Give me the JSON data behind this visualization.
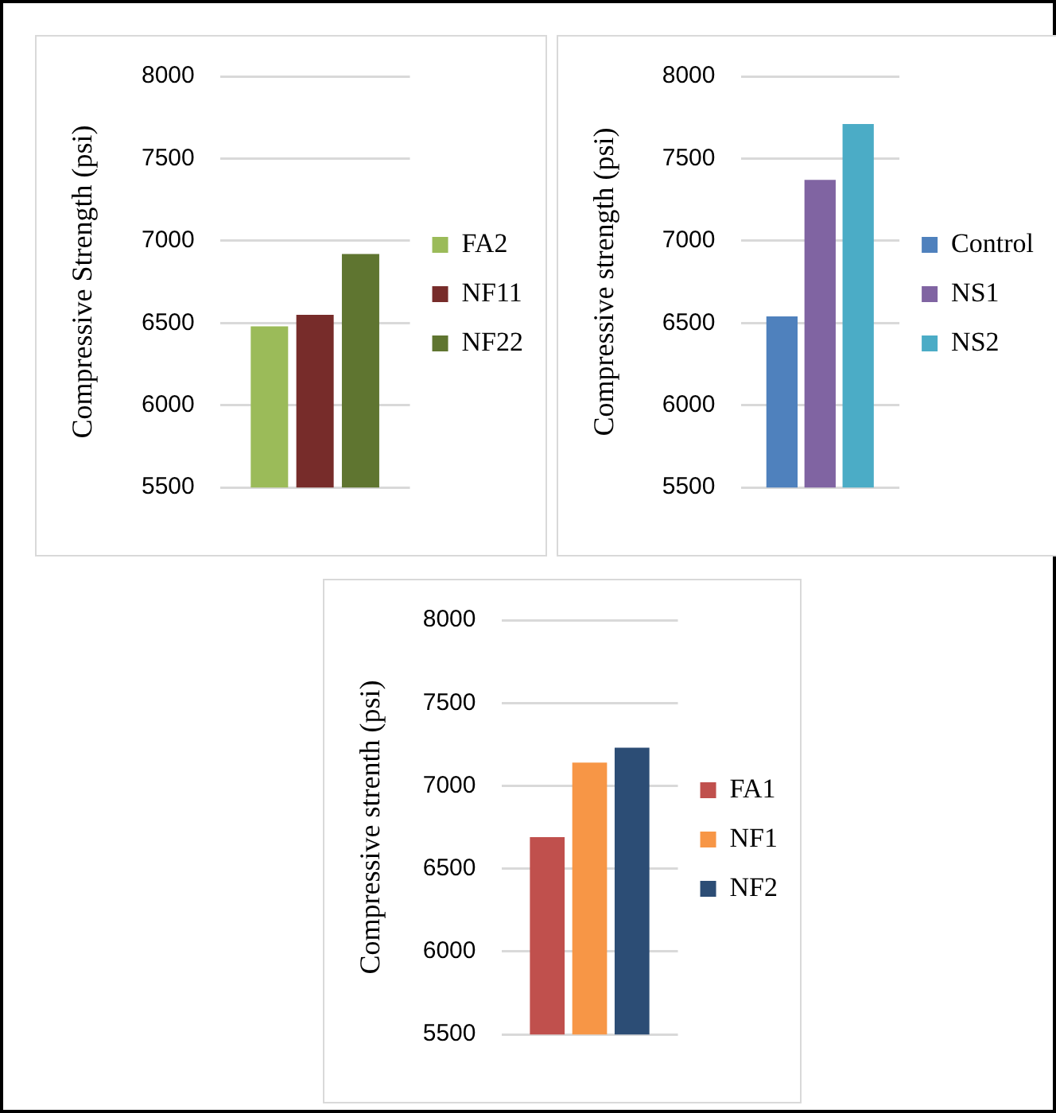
{
  "chart_data": [
    {
      "type": "bar",
      "ylabel": "Compressive Strength (psi)",
      "categories": [
        null
      ],
      "series": [
        {
          "name": "FA2",
          "color": "#9bbb59",
          "values": [
            6480
          ]
        },
        {
          "name": "NF11",
          "color": "#772c2a",
          "values": [
            6550
          ]
        },
        {
          "name": "NF22",
          "color": "#5f7530",
          "values": [
            6920
          ]
        }
      ],
      "ylim": [
        5500,
        8000
      ],
      "yticks": [
        5500,
        6000,
        6500,
        7000,
        7500,
        8000
      ],
      "grid": "y",
      "legend": "right"
    },
    {
      "type": "bar",
      "ylabel": "Compressive strength (psi)",
      "categories": [
        null
      ],
      "series": [
        {
          "name": "Control",
          "color": "#4f81bd",
          "values": [
            6540
          ]
        },
        {
          "name": "NS1",
          "color": "#8064a2",
          "values": [
            7370
          ]
        },
        {
          "name": "NS2",
          "color": "#4bacc6",
          "values": [
            7710
          ]
        }
      ],
      "ylim": [
        5500,
        8000
      ],
      "yticks": [
        5500,
        6000,
        6500,
        7000,
        7500,
        8000
      ],
      "grid": "y",
      "legend": "right"
    },
    {
      "type": "bar",
      "ylabel": "Compressive strenth (psi)",
      "categories": [
        null
      ],
      "series": [
        {
          "name": "FA1",
          "color": "#c0504d",
          "values": [
            6690
          ]
        },
        {
          "name": "NF1",
          "color": "#f79646",
          "values": [
            7140
          ]
        },
        {
          "name": "NF2",
          "color": "#2c4d75",
          "values": [
            7230
          ]
        }
      ],
      "ylim": [
        5500,
        8000
      ],
      "yticks": [
        5500,
        6000,
        6500,
        7000,
        7500,
        8000
      ],
      "grid": "y",
      "legend": "right"
    }
  ]
}
